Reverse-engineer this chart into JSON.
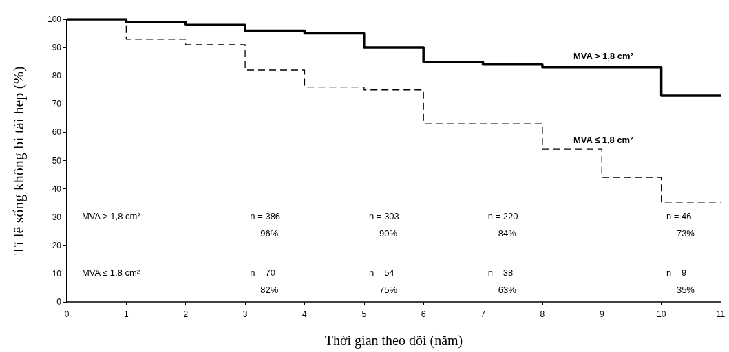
{
  "chart_data": {
    "type": "step",
    "xlabel": "Thời gian theo dõi (năm)",
    "ylabel": "Tỉ lê sống không bi tái hep (%)",
    "x": [
      0,
      1,
      2,
      3,
      4,
      5,
      6,
      7,
      8,
      9,
      10,
      11
    ],
    "series": [
      {
        "name": "MVA > 1,8 cm²",
        "color": "#000000",
        "line_style": "solid",
        "values": [
          100,
          99,
          98,
          96,
          95,
          90,
          85,
          84,
          83,
          83,
          73,
          73
        ]
      },
      {
        "name": "MVA ≤ 1,8 cm²",
        "color": "#000000",
        "line_style": "dashed",
        "values": [
          100,
          93,
          91,
          82,
          76,
          75,
          63,
          63,
          54,
          44,
          35,
          35
        ]
      }
    ],
    "xlim": [
      0,
      11
    ],
    "xticks": [
      0,
      1,
      2,
      3,
      4,
      5,
      6,
      7,
      8,
      9,
      10,
      11
    ],
    "ylim": [
      0,
      100
    ],
    "yticks": [
      0,
      10,
      20,
      30,
      40,
      50,
      60,
      70,
      80,
      90,
      100
    ],
    "grid": false,
    "legend": false,
    "marker": "none",
    "annotations": [
      "MVA > 1,8 cm²",
      "n = 386",
      "n = 303",
      "n = 220",
      "n = 46",
      "96%",
      "90%",
      "84%",
      "73%",
      "MVA ≤ 1,8 cm²",
      "n = 70",
      "n = 54",
      "n = 38",
      "n = 9",
      "82%",
      "75%",
      "63%",
      "35%"
    ]
  }
}
